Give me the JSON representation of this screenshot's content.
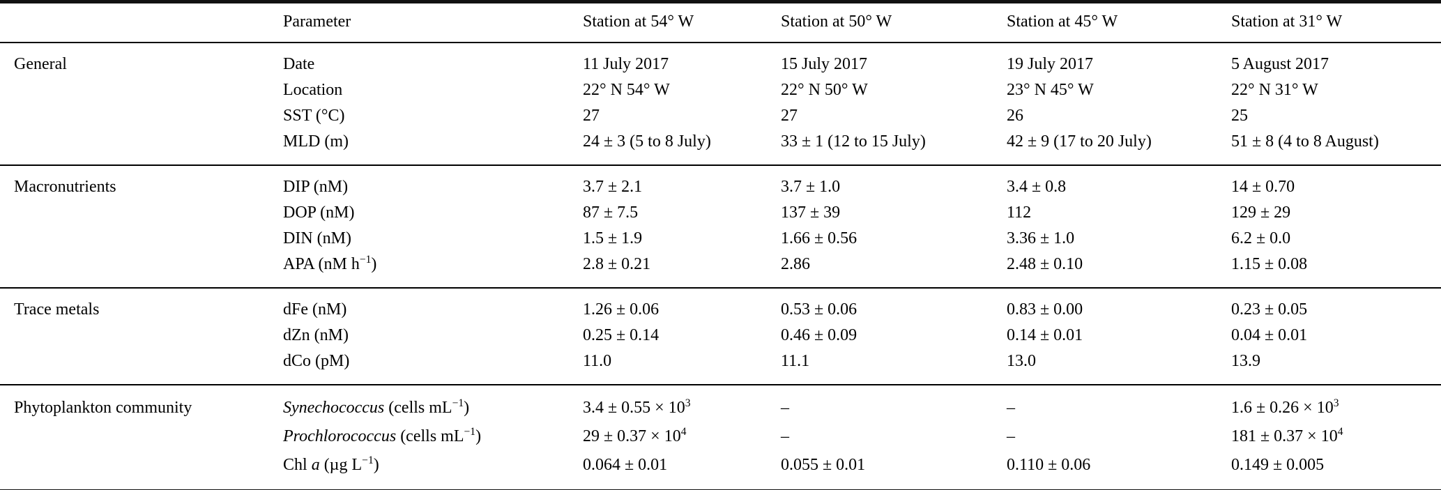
{
  "colors": {
    "text": "#000000",
    "rule": "#000000",
    "background": "#ffffff"
  },
  "table": {
    "columns": [
      "",
      "Parameter",
      "Station at 54° W",
      "Station at 50° W",
      "Station at 45° W",
      "Station at 31° W"
    ],
    "sections": [
      {
        "group": "General",
        "rows": [
          {
            "param": "Date",
            "values": [
              "11 July 2017",
              "15 July 2017",
              "19 July 2017",
              "5 August 2017"
            ]
          },
          {
            "param": "Location",
            "values": [
              "22° N 54° W",
              "22° N 50° W",
              "23° N 45° W",
              "22° N 31° W"
            ]
          },
          {
            "param": "SST (°C)",
            "values": [
              "27",
              "27",
              "26",
              "25"
            ]
          },
          {
            "param": "MLD (m)",
            "values": [
              "24 ± 3 (5 to 8 July)",
              "33 ± 1 (12 to 15 July)",
              "42 ± 9 (17 to 20 July)",
              "51 ± 8 (4 to 8 August)"
            ]
          }
        ]
      },
      {
        "group": "Macronutrients",
        "rows": [
          {
            "param": "DIP (nM)",
            "values": [
              "3.7 ± 2.1",
              "3.7 ± 1.0",
              "3.4 ± 0.8",
              "14 ± 0.70"
            ]
          },
          {
            "param": "DOP (nM)",
            "values": [
              "87 ± 7.5",
              "137 ± 39",
              "112",
              "129 ± 29"
            ]
          },
          {
            "param": "DIN (nM)",
            "values": [
              "1.5 ± 1.9",
              "1.66 ± 0.56",
              "3.36 ± 1.0",
              "6.2 ± 0.0"
            ]
          },
          {
            "param": "APA (nM h^{−1})",
            "values": [
              "2.8 ± 0.21",
              "2.86",
              "2.48 ± 0.10",
              "1.15 ± 0.08"
            ]
          }
        ]
      },
      {
        "group": "Trace metals",
        "rows": [
          {
            "param": "dFe (nM)",
            "values": [
              "1.26 ± 0.06",
              "0.53 ± 0.06",
              "0.83 ± 0.00",
              "0.23 ± 0.05"
            ]
          },
          {
            "param": "dZn (nM)",
            "values": [
              "0.25 ± 0.14",
              "0.46 ± 0.09",
              "0.14 ± 0.01",
              "0.04 ± 0.01"
            ]
          },
          {
            "param": "dCo (pM)",
            "values": [
              "11.0",
              "11.1",
              "13.0",
              "13.9"
            ]
          }
        ]
      },
      {
        "group": "Phytoplankton community",
        "rows": [
          {
            "param": "*Synechococcus* (cells mL^{−1})",
            "values": [
              "3.4 ± 0.55 × 10^{3}",
              "–",
              "–",
              "1.6 ± 0.26 × 10^{3}"
            ]
          },
          {
            "param": "*Prochlorococcus* (cells mL^{−1})",
            "values": [
              "29 ± 0.37 × 10^{4}",
              "–",
              "–",
              "181 ± 0.37 × 10^{4}"
            ]
          },
          {
            "param": "Chl *a* (µg L^{−1})",
            "values": [
              "0.064 ± 0.01",
              "0.055 ± 0.01",
              "0.110 ± 0.06",
              "0.149 ± 0.005"
            ]
          }
        ]
      }
    ]
  }
}
